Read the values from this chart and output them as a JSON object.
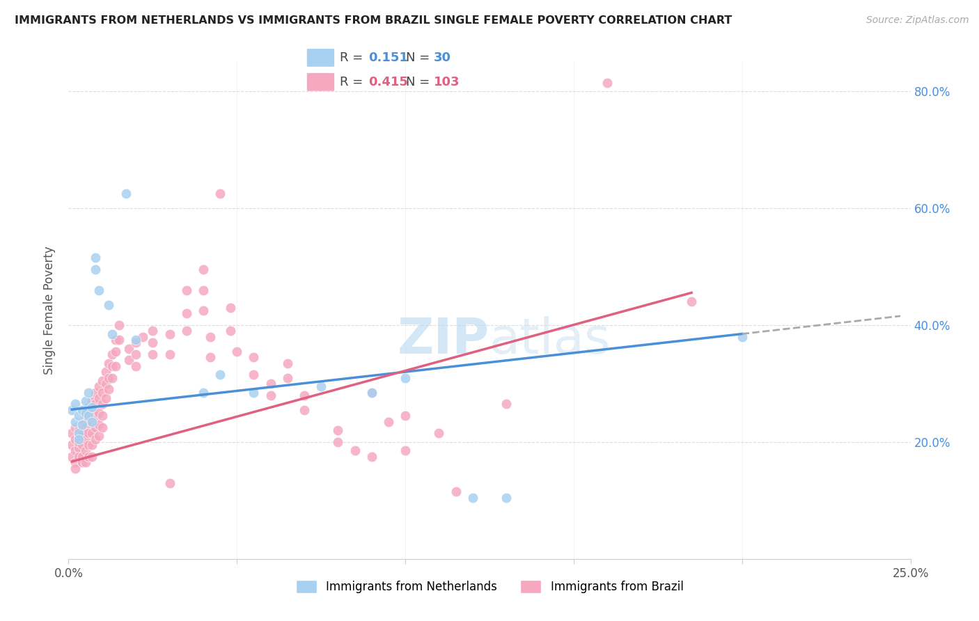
{
  "title": "IMMIGRANTS FROM NETHERLANDS VS IMMIGRANTS FROM BRAZIL SINGLE FEMALE POVERTY CORRELATION CHART",
  "source": "Source: ZipAtlas.com",
  "ylabel": "Single Female Poverty",
  "netherlands_color": "#a8d0f0",
  "brazil_color": "#f5a8c0",
  "netherlands_line_color": "#4a90d9",
  "brazil_line_color": "#e06080",
  "dash_color": "#aaaaaa",
  "watermark_color": "#cce5f8",
  "xlim": [
    0.0,
    0.25
  ],
  "ylim": [
    0.0,
    0.85
  ],
  "netherlands_scatter": [
    [
      0.001,
      0.255
    ],
    [
      0.002,
      0.235
    ],
    [
      0.002,
      0.265
    ],
    [
      0.003,
      0.245
    ],
    [
      0.003,
      0.215
    ],
    [
      0.003,
      0.205
    ],
    [
      0.004,
      0.255
    ],
    [
      0.004,
      0.23
    ],
    [
      0.005,
      0.27
    ],
    [
      0.005,
      0.25
    ],
    [
      0.006,
      0.245
    ],
    [
      0.006,
      0.285
    ],
    [
      0.007,
      0.26
    ],
    [
      0.007,
      0.235
    ],
    [
      0.008,
      0.515
    ],
    [
      0.008,
      0.495
    ],
    [
      0.009,
      0.46
    ],
    [
      0.012,
      0.435
    ],
    [
      0.013,
      0.385
    ],
    [
      0.017,
      0.625
    ],
    [
      0.02,
      0.375
    ],
    [
      0.04,
      0.285
    ],
    [
      0.045,
      0.315
    ],
    [
      0.055,
      0.285
    ],
    [
      0.075,
      0.295
    ],
    [
      0.09,
      0.285
    ],
    [
      0.1,
      0.31
    ],
    [
      0.12,
      0.105
    ],
    [
      0.13,
      0.105
    ],
    [
      0.2,
      0.38
    ]
  ],
  "brazil_scatter": [
    [
      0.001,
      0.175
    ],
    [
      0.001,
      0.195
    ],
    [
      0.001,
      0.215
    ],
    [
      0.002,
      0.185
    ],
    [
      0.002,
      0.205
    ],
    [
      0.002,
      0.225
    ],
    [
      0.002,
      0.165
    ],
    [
      0.002,
      0.155
    ],
    [
      0.003,
      0.21
    ],
    [
      0.003,
      0.19
    ],
    [
      0.003,
      0.175
    ],
    [
      0.003,
      0.2
    ],
    [
      0.003,
      0.22
    ],
    [
      0.004,
      0.23
    ],
    [
      0.004,
      0.215
    ],
    [
      0.004,
      0.175
    ],
    [
      0.004,
      0.195
    ],
    [
      0.004,
      0.165
    ],
    [
      0.005,
      0.245
    ],
    [
      0.005,
      0.225
    ],
    [
      0.005,
      0.205
    ],
    [
      0.005,
      0.185
    ],
    [
      0.005,
      0.165
    ],
    [
      0.006,
      0.26
    ],
    [
      0.006,
      0.24
    ],
    [
      0.006,
      0.215
    ],
    [
      0.006,
      0.195
    ],
    [
      0.006,
      0.175
    ],
    [
      0.007,
      0.27
    ],
    [
      0.007,
      0.255
    ],
    [
      0.007,
      0.235
    ],
    [
      0.007,
      0.215
    ],
    [
      0.007,
      0.195
    ],
    [
      0.007,
      0.175
    ],
    [
      0.008,
      0.285
    ],
    [
      0.008,
      0.265
    ],
    [
      0.008,
      0.245
    ],
    [
      0.008,
      0.225
    ],
    [
      0.008,
      0.205
    ],
    [
      0.009,
      0.295
    ],
    [
      0.009,
      0.275
    ],
    [
      0.009,
      0.25
    ],
    [
      0.009,
      0.23
    ],
    [
      0.009,
      0.21
    ],
    [
      0.01,
      0.305
    ],
    [
      0.01,
      0.285
    ],
    [
      0.01,
      0.265
    ],
    [
      0.01,
      0.245
    ],
    [
      0.01,
      0.225
    ],
    [
      0.011,
      0.32
    ],
    [
      0.011,
      0.3
    ],
    [
      0.011,
      0.275
    ],
    [
      0.012,
      0.335
    ],
    [
      0.012,
      0.31
    ],
    [
      0.012,
      0.29
    ],
    [
      0.013,
      0.35
    ],
    [
      0.013,
      0.33
    ],
    [
      0.013,
      0.31
    ],
    [
      0.014,
      0.375
    ],
    [
      0.014,
      0.355
    ],
    [
      0.014,
      0.33
    ],
    [
      0.015,
      0.4
    ],
    [
      0.015,
      0.375
    ],
    [
      0.018,
      0.36
    ],
    [
      0.018,
      0.34
    ],
    [
      0.02,
      0.37
    ],
    [
      0.02,
      0.35
    ],
    [
      0.02,
      0.33
    ],
    [
      0.022,
      0.38
    ],
    [
      0.025,
      0.39
    ],
    [
      0.025,
      0.37
    ],
    [
      0.025,
      0.35
    ],
    [
      0.03,
      0.385
    ],
    [
      0.03,
      0.35
    ],
    [
      0.03,
      0.13
    ],
    [
      0.035,
      0.46
    ],
    [
      0.035,
      0.42
    ],
    [
      0.035,
      0.39
    ],
    [
      0.04,
      0.495
    ],
    [
      0.04,
      0.46
    ],
    [
      0.04,
      0.425
    ],
    [
      0.042,
      0.38
    ],
    [
      0.042,
      0.345
    ],
    [
      0.045,
      0.625
    ],
    [
      0.048,
      0.43
    ],
    [
      0.048,
      0.39
    ],
    [
      0.05,
      0.355
    ],
    [
      0.055,
      0.345
    ],
    [
      0.055,
      0.315
    ],
    [
      0.06,
      0.3
    ],
    [
      0.06,
      0.28
    ],
    [
      0.065,
      0.335
    ],
    [
      0.065,
      0.31
    ],
    [
      0.07,
      0.28
    ],
    [
      0.07,
      0.255
    ],
    [
      0.08,
      0.22
    ],
    [
      0.08,
      0.2
    ],
    [
      0.085,
      0.185
    ],
    [
      0.09,
      0.285
    ],
    [
      0.09,
      0.175
    ],
    [
      0.095,
      0.235
    ],
    [
      0.1,
      0.245
    ],
    [
      0.1,
      0.185
    ],
    [
      0.11,
      0.215
    ],
    [
      0.115,
      0.115
    ],
    [
      0.13,
      0.265
    ],
    [
      0.16,
      0.815
    ],
    [
      0.185,
      0.44
    ]
  ],
  "nl_trend_start_x": 0.001,
  "nl_trend_end_x": 0.2,
  "nl_trend_dash_end_x": 0.247,
  "br_trend_start_x": 0.001,
  "br_trend_end_x": 0.185
}
